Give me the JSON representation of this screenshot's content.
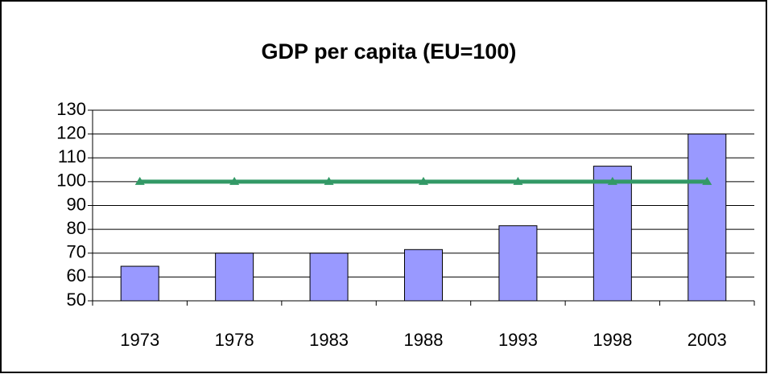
{
  "chart_data": {
    "type": "bar",
    "title": "GDP per capita (EU=100)",
    "categories": [
      "1973",
      "1978",
      "1983",
      "1988",
      "1993",
      "1998",
      "2003"
    ],
    "series": [
      {
        "type": "bar",
        "color": "#9999ff",
        "values": [
          64.5,
          70,
          70,
          71.5,
          81.5,
          106.5,
          120
        ]
      },
      {
        "type": "line",
        "color": "#339966",
        "values": [
          100,
          100,
          100,
          100,
          100,
          100,
          100
        ]
      }
    ],
    "ylim": [
      50,
      130
    ],
    "yticks": [
      50,
      60,
      70,
      80,
      90,
      100,
      110,
      120,
      130
    ],
    "grid": true
  }
}
